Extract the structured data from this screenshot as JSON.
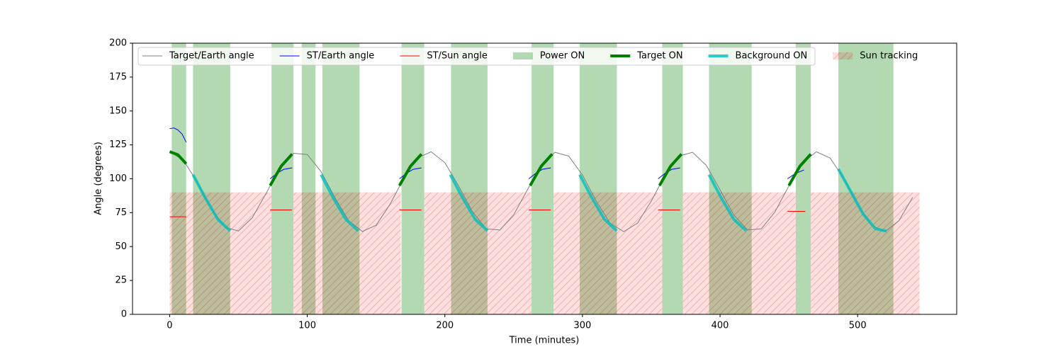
{
  "chart_data": {
    "type": "line",
    "xlabel": "Time (minutes)",
    "ylabel": "Angle (degrees)",
    "xlim": [
      -27,
      572
    ],
    "ylim": [
      0,
      200
    ],
    "xticks": [
      0,
      100,
      200,
      300,
      400,
      500
    ],
    "yticks": [
      0,
      25,
      50,
      75,
      100,
      125,
      150,
      175,
      200
    ],
    "legend": "upper center",
    "series": [
      {
        "name": "Target/Earth angle",
        "kind": "line",
        "color": "#808080",
        "linewidth": 1,
        "x": [
          0,
          10,
          20,
          30,
          40,
          50,
          60,
          70,
          80,
          90,
          100,
          110,
          120,
          130,
          140,
          150,
          160,
          170,
          180,
          190,
          200,
          210,
          220,
          230,
          240,
          250,
          260,
          270,
          280,
          290,
          300,
          310,
          320,
          330,
          340,
          350,
          360,
          370,
          380,
          390,
          400,
          410,
          420,
          430,
          440,
          450,
          460,
          470,
          480,
          490,
          500,
          510,
          520,
          530,
          540
        ],
        "values": [
          120,
          113.7,
          97.5,
          78.3,
          64.3,
          61.5,
          71.2,
          89.1,
          107.6,
          118.8,
          117.9,
          105.3,
          86.3,
          69.2,
          61.1,
          65.7,
          80.9,
          100.1,
          115.3,
          119.9,
          111.9,
          94.7,
          75.8,
          63.1,
          62.2,
          73.4,
          91.9,
          109.8,
          119.5,
          116.7,
          102.8,
          83.6,
          67.3,
          61,
          67.3,
          83.5,
          102.7,
          116.7,
          119.5,
          109.9,
          91.9,
          73.4,
          62.2,
          63.1,
          75.7,
          94.7,
          111.8,
          119.9,
          115.3,
          100.2,
          80.9,
          65.7,
          61.1,
          69.1,
          86.3
        ]
      },
      {
        "name": "ST/Earth angle",
        "kind": "line",
        "color": "#0000ff",
        "linewidth": 1,
        "x": [
          0,
          3,
          6,
          9,
          12,
          40,
          73,
          78,
          83,
          89,
          128,
          167,
          172,
          177,
          183,
          222,
          261,
          266,
          271,
          277,
          316,
          355,
          360,
          365,
          371,
          410,
          449,
          455,
          461
        ],
        "values": [
          137,
          137.5,
          136,
          133,
          127,
          null,
          100,
          104,
          107,
          108,
          null,
          100,
          104,
          107,
          108,
          null,
          100,
          104,
          107,
          108,
          null,
          100,
          104,
          107,
          108,
          null,
          100,
          104,
          106.5
        ]
      },
      {
        "name": "ST/Sun angle",
        "kind": "line",
        "color": "#ff0000",
        "linewidth": 1,
        "x": [
          0,
          12,
          40,
          73,
          89,
          128,
          167,
          183,
          222,
          261,
          277,
          316,
          355,
          371,
          410,
          449,
          462
        ],
        "values": [
          72,
          72,
          null,
          77,
          77,
          null,
          77,
          77,
          null,
          77,
          77,
          null,
          77,
          77,
          null,
          76,
          76
        ]
      },
      {
        "name": "Power ON",
        "kind": "span",
        "color": "#008000",
        "alpha": 0.3,
        "starts": [
          1.5,
          17,
          74,
          96,
          111,
          168.5,
          204.5,
          263,
          298,
          358,
          392,
          455,
          486
        ],
        "ends": [
          12,
          44,
          90,
          106,
          138,
          185,
          231,
          279,
          325,
          373,
          423,
          466,
          526
        ]
      },
      {
        "name": "Target ON",
        "kind": "line",
        "color": "#008000",
        "linewidth": 4,
        "x": [
          0,
          6,
          12,
          42,
          73,
          81,
          89,
          128,
          167,
          175,
          183,
          222,
          262,
          270,
          278,
          317,
          356,
          364,
          372,
          411,
          450,
          458,
          466
        ],
        "values": [
          120,
          117.7,
          111.1,
          null,
          95,
          109.2,
          118.2,
          null,
          95,
          109.2,
          118.2,
          null,
          95,
          109.2,
          118.2,
          null,
          95,
          109.2,
          118.2,
          null,
          95,
          109.2,
          118.2
        ]
      },
      {
        "name": "Background ON",
        "kind": "line",
        "color": "#00bfbf",
        "linewidth": 4,
        "alpha": 0.8,
        "x": [
          17,
          26,
          35,
          44,
          77,
          110,
          119,
          128,
          137,
          171,
          204,
          213,
          222,
          231,
          265,
          298,
          307,
          316,
          325,
          360,
          392,
          401,
          410,
          419,
          454,
          486,
          495,
          504,
          513,
          521
        ],
        "values": [
          103,
          85.7,
          70.1,
          61.6,
          null,
          103,
          85.7,
          70.1,
          61.6,
          null,
          103,
          85.7,
          70.1,
          61.6,
          null,
          103,
          85.7,
          70.1,
          61.6,
          null,
          103,
          85.7,
          70.1,
          61.6,
          null,
          107.2,
          90.6,
          74,
          63.1,
          61.4
        ]
      },
      {
        "name": "Sun tracking",
        "kind": "span",
        "color": "#ff0000",
        "alpha": 0.12,
        "hatch": true,
        "ymax": 90,
        "starts": [
          0,
          90,
          185,
          279,
          373,
          466
        ],
        "ends": [
          74,
          168,
          263,
          358,
          455,
          545
        ]
      }
    ]
  }
}
